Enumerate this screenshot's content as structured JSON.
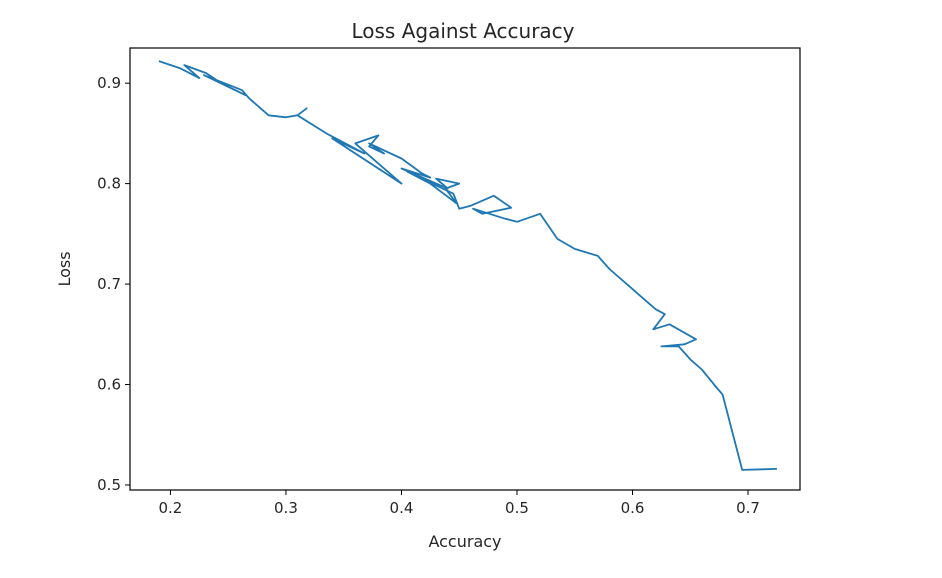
{
  "chart_data": {
    "type": "line",
    "title": "Loss Against Accuracy",
    "xlabel": "Accuracy",
    "ylabel": "Loss",
    "xlim": [
      0.165,
      0.745
    ],
    "ylim": [
      0.495,
      0.935
    ],
    "xticks": [
      0.2,
      0.3,
      0.4,
      0.5,
      0.6,
      0.7
    ],
    "xtick_labels": [
      "0.2",
      "0.3",
      "0.4",
      "0.5",
      "0.6",
      "0.7"
    ],
    "yticks": [
      0.5,
      0.6,
      0.7,
      0.8,
      0.9
    ],
    "ytick_labels": [
      "0.5",
      "0.6",
      "0.7",
      "0.8",
      "0.9"
    ],
    "grid": false,
    "series": [
      {
        "color": "#1f77b4",
        "x": [
          0.19,
          0.208,
          0.225,
          0.212,
          0.231,
          0.244,
          0.265,
          0.229,
          0.262,
          0.268,
          0.285,
          0.3,
          0.31,
          0.318,
          0.31,
          0.335,
          0.368,
          0.34,
          0.4,
          0.36,
          0.38,
          0.372,
          0.385,
          0.372,
          0.4,
          0.418,
          0.425,
          0.4,
          0.44,
          0.43,
          0.45,
          0.438,
          0.448,
          0.425,
          0.405,
          0.445,
          0.45,
          0.46,
          0.48,
          0.495,
          0.47,
          0.462,
          0.49,
          0.5,
          0.52,
          0.535,
          0.55,
          0.57,
          0.58,
          0.6,
          0.62,
          0.628,
          0.618,
          0.632,
          0.655,
          0.645,
          0.625,
          0.64,
          0.65,
          0.66,
          0.672,
          0.678,
          0.695,
          0.725
        ],
        "y": [
          0.922,
          0.915,
          0.905,
          0.918,
          0.91,
          0.9,
          0.888,
          0.908,
          0.893,
          0.885,
          0.868,
          0.866,
          0.868,
          0.875,
          0.868,
          0.85,
          0.83,
          0.845,
          0.8,
          0.84,
          0.848,
          0.837,
          0.83,
          0.84,
          0.825,
          0.81,
          0.806,
          0.815,
          0.795,
          0.805,
          0.8,
          0.795,
          0.78,
          0.8,
          0.812,
          0.79,
          0.775,
          0.778,
          0.788,
          0.776,
          0.77,
          0.775,
          0.765,
          0.762,
          0.77,
          0.745,
          0.735,
          0.728,
          0.715,
          0.695,
          0.675,
          0.67,
          0.655,
          0.66,
          0.645,
          0.64,
          0.638,
          0.638,
          0.625,
          0.615,
          0.598,
          0.59,
          0.515,
          0.516
        ]
      }
    ]
  }
}
